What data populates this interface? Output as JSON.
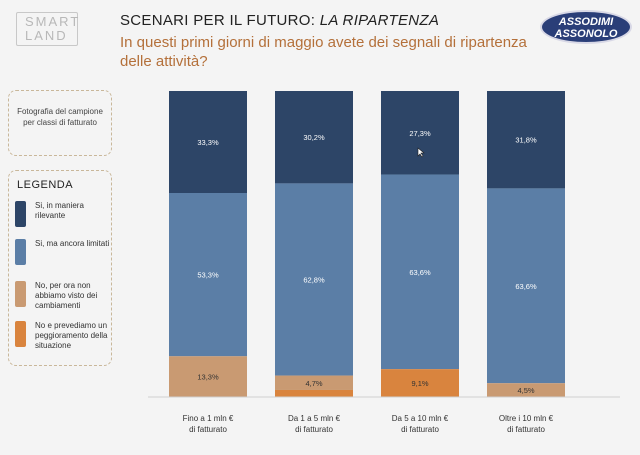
{
  "logo": {
    "line1": "SMART",
    "line2": "LAND"
  },
  "brand": {
    "line1": "ASSODIMI",
    "line2": "ASSONOLO"
  },
  "header": {
    "title_main": "SCENARI PER IL FUTURO: ",
    "title_em": "LA RIPARTENZA",
    "subtitle": "In questi primi giorni di maggio avete dei segnali di ripartenza delle attività?"
  },
  "note": {
    "text": "Fotografia del campione per classi di fatturato"
  },
  "legend": {
    "title": "LEGENDA",
    "items": [
      {
        "label": "Si, in maniera rilevante",
        "color": "#2d4567"
      },
      {
        "label": "Si, ma ancora limitati",
        "color": "#5b7ea6"
      },
      {
        "label": "No, per ora non abbiamo visto dei cambiamenti",
        "color": "#c99a72"
      },
      {
        "label": "No e prevediamo un peggioramento della situazione",
        "color": "#d9843e"
      }
    ]
  },
  "chart_data": {
    "type": "bar",
    "stacked": true,
    "percent": true,
    "categories": [
      "Fino a 1 mln € di fatturato",
      "Da 1 a 5 mln € di fatturato",
      "Da 5 a 10 mln € di fatturato",
      "Oltre i 10 mln € di fatturato"
    ],
    "category_lines": [
      [
        "Fino a 1 mln €",
        "di fatturato"
      ],
      [
        "Da 1 a 5 mln €",
        "di fatturato"
      ],
      [
        "Da 5 a 10 mln €",
        "di fatturato"
      ],
      [
        "Oltre i 10 mln €",
        "di fatturato"
      ]
    ],
    "series": [
      {
        "name": "Si, in maniera rilevante",
        "values": [
          33.3,
          30.2,
          27.3,
          31.8
        ],
        "labels": [
          "33,3%",
          "30,2%",
          "27,3%",
          "31,8%"
        ],
        "color": "#2d4567"
      },
      {
        "name": "Si, ma ancora limitati",
        "values": [
          53.3,
          62.8,
          63.6,
          63.6
        ],
        "labels": [
          "53,3%",
          "62,8%",
          "63,6%",
          "63,6%"
        ],
        "color": "#5b7ea6"
      },
      {
        "name": "No, per ora non abbiamo visto dei cambiamenti",
        "values": [
          13.3,
          4.7,
          0,
          4.5
        ],
        "labels": [
          "13,3%",
          "4,7%",
          "",
          "4,5%"
        ],
        "color": "#c99a72"
      },
      {
        "name": "No e prevediamo un peggioramento della situazione",
        "values": [
          0,
          2.3,
          9.1,
          0
        ],
        "labels": [
          "",
          "",
          "9,1%",
          ""
        ],
        "color": "#d9843e"
      }
    ],
    "ylim": [
      0,
      100
    ],
    "grid": false,
    "legend_position": "left"
  }
}
